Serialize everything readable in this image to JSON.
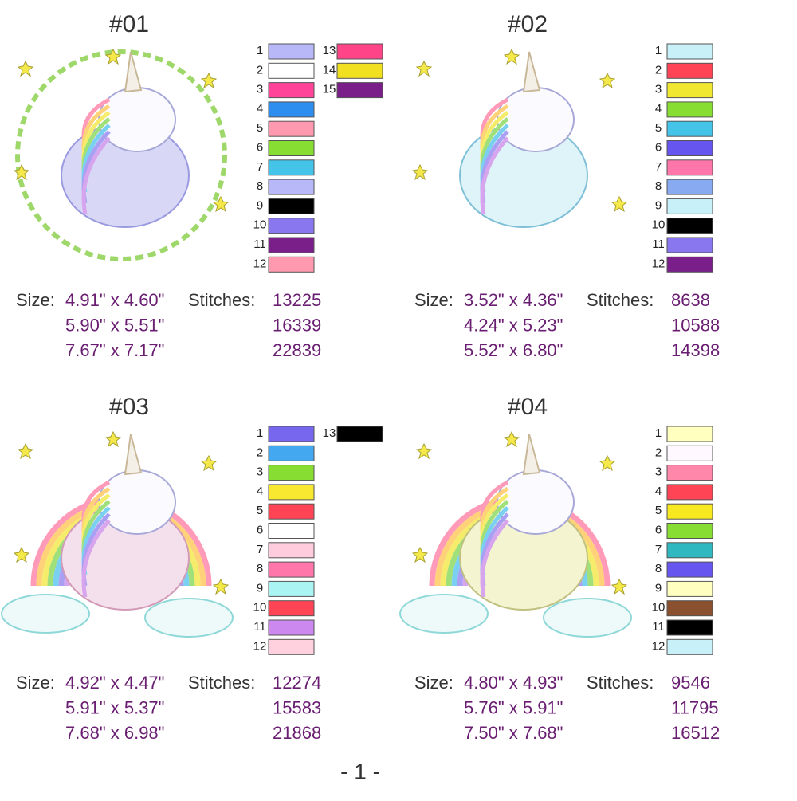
{
  "size_label": "Size:",
  "stitches_label": "Stitches:",
  "page_number": "- 1 -",
  "designs": [
    {
      "title": "#01",
      "colors": [
        {
          "number": 1,
          "color": "#b8b8f8"
        },
        {
          "number": 2,
          "color": "#ffffff"
        },
        {
          "number": 3,
          "color": "#ff4499"
        },
        {
          "number": 4,
          "color": "#2e8ef0"
        },
        {
          "number": 5,
          "color": "#ff99b0"
        },
        {
          "number": 6,
          "color": "#88dd33"
        },
        {
          "number": 7,
          "color": "#44c4e8"
        },
        {
          "number": 8,
          "color": "#b8b8f8"
        },
        {
          "number": 9,
          "color": "#000000"
        },
        {
          "number": 10,
          "color": "#8877ee"
        },
        {
          "number": 11,
          "color": "#7a1f8a"
        },
        {
          "number": 12,
          "color": "#ff99b0"
        },
        {
          "number": 13,
          "color": "#ff4488"
        },
        {
          "number": 14,
          "color": "#f0e020"
        },
        {
          "number": 15,
          "color": "#7a1f8a"
        }
      ],
      "sizes": [
        "4.91\" x 4.60\"",
        "5.90\" x 5.51\"",
        "7.67\" x 7.17\""
      ],
      "stitches": [
        13225,
        16339,
        22839
      ]
    },
    {
      "title": "#02",
      "colors": [
        {
          "number": 1,
          "color": "#c8f0f8"
        },
        {
          "number": 2,
          "color": "#ff4455"
        },
        {
          "number": 3,
          "color": "#f0e830"
        },
        {
          "number": 4,
          "color": "#88dd33"
        },
        {
          "number": 5,
          "color": "#44c4e8"
        },
        {
          "number": 6,
          "color": "#6655ee"
        },
        {
          "number": 7,
          "color": "#ff77aa"
        },
        {
          "number": 8,
          "color": "#88aaf0"
        },
        {
          "number": 9,
          "color": "#c8f0f8"
        },
        {
          "number": 10,
          "color": "#000000"
        },
        {
          "number": 11,
          "color": "#8877ee"
        },
        {
          "number": 12,
          "color": "#7a1f8a"
        }
      ],
      "sizes": [
        "3.52\" x 4.36\"",
        "4.24\" x 5.23\"",
        "5.52\" x 6.80\""
      ],
      "stitches": [
        8638,
        10588,
        14398
      ]
    },
    {
      "title": "#03",
      "colors": [
        {
          "number": 1,
          "color": "#7766ee"
        },
        {
          "number": 2,
          "color": "#44a8f0"
        },
        {
          "number": 3,
          "color": "#88dd33"
        },
        {
          "number": 4,
          "color": "#f8e830"
        },
        {
          "number": 5,
          "color": "#ff4455"
        },
        {
          "number": 6,
          "color": "#ffffff"
        },
        {
          "number": 7,
          "color": "#ffccdd"
        },
        {
          "number": 8,
          "color": "#ff77aa"
        },
        {
          "number": 9,
          "color": "#aaf4f4"
        },
        {
          "number": 10,
          "color": "#ff4455"
        },
        {
          "number": 11,
          "color": "#cc88ee"
        },
        {
          "number": 12,
          "color": "#ffd0dd"
        },
        {
          "number": 13,
          "color": "#000000"
        }
      ],
      "sizes": [
        "4.92\" x 4.47\"",
        "5.91\" x 5.37\"",
        "7.68\" x 6.98\""
      ],
      "stitches": [
        12274,
        15583,
        21868
      ]
    },
    {
      "title": "#04",
      "colors": [
        {
          "number": 1,
          "color": "#ffffc0"
        },
        {
          "number": 2,
          "color": "#fff8ff"
        },
        {
          "number": 3,
          "color": "#ff88aa"
        },
        {
          "number": 4,
          "color": "#ff4455"
        },
        {
          "number": 5,
          "color": "#f8e820"
        },
        {
          "number": 6,
          "color": "#88dd33"
        },
        {
          "number": 7,
          "color": "#30b8c0"
        },
        {
          "number": 8,
          "color": "#6655ee"
        },
        {
          "number": 9,
          "color": "#ffffc0"
        },
        {
          "number": 10,
          "color": "#8b5030"
        },
        {
          "number": 11,
          "color": "#000000"
        },
        {
          "number": 12,
          "color": "#c8f0f8"
        }
      ],
      "sizes": [
        "4.80\" x 4.93\"",
        "5.76\" x 5.91\"",
        "7.50\" x 7.68\""
      ],
      "stitches": [
        9546,
        11795,
        16512
      ]
    }
  ]
}
